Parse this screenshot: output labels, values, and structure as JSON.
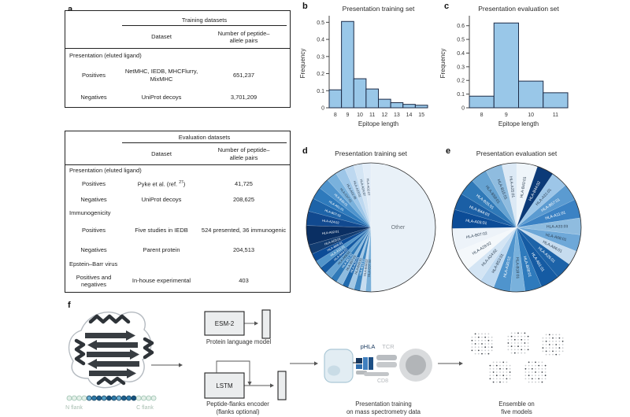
{
  "panel_labels": {
    "a": "a",
    "b": "b",
    "c": "c",
    "d": "d",
    "e": "e",
    "f": "f"
  },
  "tables": {
    "training": {
      "title": "Training datasets",
      "col_dataset": "Dataset",
      "col_pairs_1": "Number of peptide–",
      "col_pairs_2": "allele pairs",
      "section_presentation": "Presentation (eluted ligand)",
      "rows": [
        {
          "label": "Positives",
          "dataset": "NetMHC, IEDB, MHCFlurry, MixMHC",
          "pairs": "651,237"
        },
        {
          "label": "Negatives",
          "dataset": "UniProt decoys",
          "pairs": "3,701,209"
        }
      ]
    },
    "evaluation": {
      "title": "Evaluation datasets",
      "col_dataset": "Dataset",
      "col_pairs_1": "Number of peptide–",
      "col_pairs_2": "allele pairs",
      "section_presentation": "Presentation (eluted ligand)",
      "section_immunogenicity": "Immunogenicity",
      "section_ebv": "Epstein–Barr virus",
      "pres_pos_label": "Positives",
      "pres_pos_dataset_pre": "Pyke et al. (ref. ",
      "pres_pos_dataset_sup": "27",
      "pres_pos_dataset_post": ")",
      "pres_pos_pairs": "41,725",
      "pres_neg_label": "Negatives",
      "pres_neg_dataset": "UniProt decoys",
      "pres_neg_pairs": "208,625",
      "imm_pos_label": "Positives",
      "imm_pos_dataset": "Five studies in IEDB",
      "imm_pos_pairs": "524 presented, 36 immunogenic",
      "imm_neg_label": "Negatives",
      "imm_neg_dataset": "Parent protein",
      "imm_neg_pairs": "204,513",
      "ebv_label": "Positives and negatives",
      "ebv_dataset": "In-house experimental",
      "ebv_pairs": "403"
    }
  },
  "chart_data": [
    {
      "id": "hist-presentation-training",
      "type": "bar",
      "title": "Presentation training set",
      "xlabel": "Epitope length",
      "ylabel": "Frequency",
      "categories": [
        8,
        9,
        10,
        11,
        12,
        13,
        14,
        15
      ],
      "values": [
        0.105,
        0.505,
        0.17,
        0.11,
        0.05,
        0.03,
        0.02,
        0.015
      ],
      "ylim": [
        0,
        0.52
      ],
      "yticks": [
        0,
        0.1,
        0.2,
        0.3,
        0.4,
        0.5
      ],
      "bar_fill": "#99c7e8",
      "bar_edge": "#1c2b47",
      "grid": false,
      "legend": "none"
    },
    {
      "id": "hist-presentation-evaluation",
      "type": "bar",
      "title": "Presentation evaluation set",
      "xlabel": "Epitope length",
      "ylabel": "Frequency",
      "categories": [
        8,
        9,
        10,
        11
      ],
      "values": [
        0.085,
        0.62,
        0.195,
        0.11
      ],
      "ylim": [
        0,
        0.65
      ],
      "yticks": [
        0,
        0.1,
        0.2,
        0.3,
        0.4,
        0.5,
        0.6
      ],
      "bar_fill": "#99c7e8",
      "bar_edge": "#1c2b47",
      "grid": false,
      "legend": "none"
    },
    {
      "id": "pie-presentation-training",
      "type": "pie",
      "title": "Presentation training set",
      "slices": [
        {
          "label": "Other",
          "value": 36.0,
          "color": "#e9f1f8"
        },
        {
          "label": "HLA-C07:02",
          "value": 1.0,
          "color": "#7ab0d9"
        },
        {
          "label": "HLA-B44:02",
          "value": 1.0,
          "color": "#c6dcef"
        },
        {
          "label": "HLA-B15:01",
          "value": 1.1,
          "color": "#4087c1"
        },
        {
          "label": "HLA-B40:01",
          "value": 1.1,
          "color": "#a3c8e5"
        },
        {
          "label": "HLA-A26:01",
          "value": 1.1,
          "color": "#216aae"
        },
        {
          "label": "HLA-B57:01",
          "value": 1.2,
          "color": "#8fbcdf"
        },
        {
          "label": "HLA-B51:01",
          "value": 1.2,
          "color": "#2f79b8"
        },
        {
          "label": "HLA-A68:01",
          "value": 1.3,
          "color": "#66a3d2"
        },
        {
          "label": "HLA-B44:03",
          "value": 1.3,
          "color": "#155ba3"
        },
        {
          "label": "HLA-A11:01",
          "value": 1.4,
          "color": "#5295ca"
        },
        {
          "label": "HLA-B08:01",
          "value": 1.5,
          "color": "#0c4c97"
        },
        {
          "label": "HLA-A03:01",
          "value": 1.7,
          "color": "#123c71"
        },
        {
          "label": "HLA-A02:01",
          "value": 3.5,
          "color": "#0a2f63"
        },
        {
          "label": "HLA-A24:02",
          "value": 2.6,
          "color": "#11498f"
        },
        {
          "label": "HLA-B07:02",
          "value": 2.4,
          "color": "#1d63a8"
        },
        {
          "label": "HLA-A01:01",
          "value": 2.2,
          "color": "#2e7abc"
        },
        {
          "label": "HLA-B35:01",
          "value": 2.0,
          "color": "#4f94cd"
        },
        {
          "label": "HLA-C07:01",
          "value": 1.9,
          "color": "#79b1dc"
        },
        {
          "label": "HLA-A02:06",
          "value": 1.8,
          "color": "#9dc6e8"
        },
        {
          "label": "HLA-A23:01",
          "value": 1.7,
          "color": "#bdd8f0"
        },
        {
          "label": "HLA-A24:07",
          "value": 1.6,
          "color": "#d4e5f4"
        },
        {
          "label": "HLA-A02:07",
          "value": 1.5,
          "color": "#e2edf8"
        }
      ]
    },
    {
      "id": "pie-presentation-evaluation",
      "type": "pie",
      "title": "Presentation evaluation set",
      "slices": [
        {
          "label": "HLA-B40:01",
          "value": 5.0,
          "color": "#eff5fa"
        },
        {
          "label": "HLA-B44:02",
          "value": 4.0,
          "color": "#0b3a78"
        },
        {
          "label": "HLA-A31:01",
          "value": 4.0,
          "color": "#9dc6e8"
        },
        {
          "label": "HLA-B57:01",
          "value": 4.0,
          "color": "#5b9bd1"
        },
        {
          "label": "HLA-A11:01",
          "value": 4.5,
          "color": "#3b82c4"
        },
        {
          "label": "HLA-A33:03",
          "value": 4.0,
          "color": "#8fbcdf"
        },
        {
          "label": "HLA-A68:01",
          "value": 4.0,
          "color": "#6ea8d8"
        },
        {
          "label": "HLA-A66:01",
          "value": 3.5,
          "color": "#c6dcef"
        },
        {
          "label": "HLA-A26:01",
          "value": 4.0,
          "color": "#1d63a8"
        },
        {
          "label": "HLA-A01:01",
          "value": 4.5,
          "color": "#155ba3"
        },
        {
          "label": "HLA-B08:01",
          "value": 4.0,
          "color": "#2e7abc"
        },
        {
          "label": "HLA-B18:01",
          "value": 3.5,
          "color": "#79b1dc"
        },
        {
          "label": "HLA-A30:02",
          "value": 4.0,
          "color": "#4f94cd"
        },
        {
          "label": "HLA-B53:01",
          "value": 3.5,
          "color": "#bdd8f0"
        },
        {
          "label": "HLA-A24:02",
          "value": 4.0,
          "color": "#d4e5f4"
        },
        {
          "label": "HLA-A29:02",
          "value": 5.0,
          "color": "#f4f8fb"
        },
        {
          "label": "HLA-B07:02",
          "value": 5.5,
          "color": "#edf3f9"
        },
        {
          "label": "HLA-A03:01",
          "value": 4.5,
          "color": "#0c4c97"
        },
        {
          "label": "HLA-B44:03",
          "value": 4.0,
          "color": "#1b5fa5"
        },
        {
          "label": "HLA-B35:01",
          "value": 4.0,
          "color": "#2f79b8"
        },
        {
          "label": "HLA-B58:01",
          "value": 4.0,
          "color": "#66a3d2"
        },
        {
          "label": "HLA-B15:01",
          "value": 4.0,
          "color": "#8fbcdf"
        },
        {
          "label": "HLA-A25:01",
          "value": 3.5,
          "color": "#dce9f5"
        }
      ]
    }
  ],
  "flow": {
    "esm_label": "ESM-2",
    "esm_caption": "Protein language model",
    "lstm_label": "LSTM",
    "lstm_caption_1": "Peptide-flanks encoder",
    "lstm_caption_2": "(flanks optional)",
    "phla_label": "pHLA",
    "tcr_label": "TCR",
    "cd8_label": "CD8",
    "training_caption_1": "Presentation training",
    "training_caption_2": "on mass spectrometry data",
    "ensemble_caption_1": "Ensemble on",
    "ensemble_caption_2": "five models",
    "n_flank_label": "N flank",
    "c_flank_label": "C flank"
  }
}
